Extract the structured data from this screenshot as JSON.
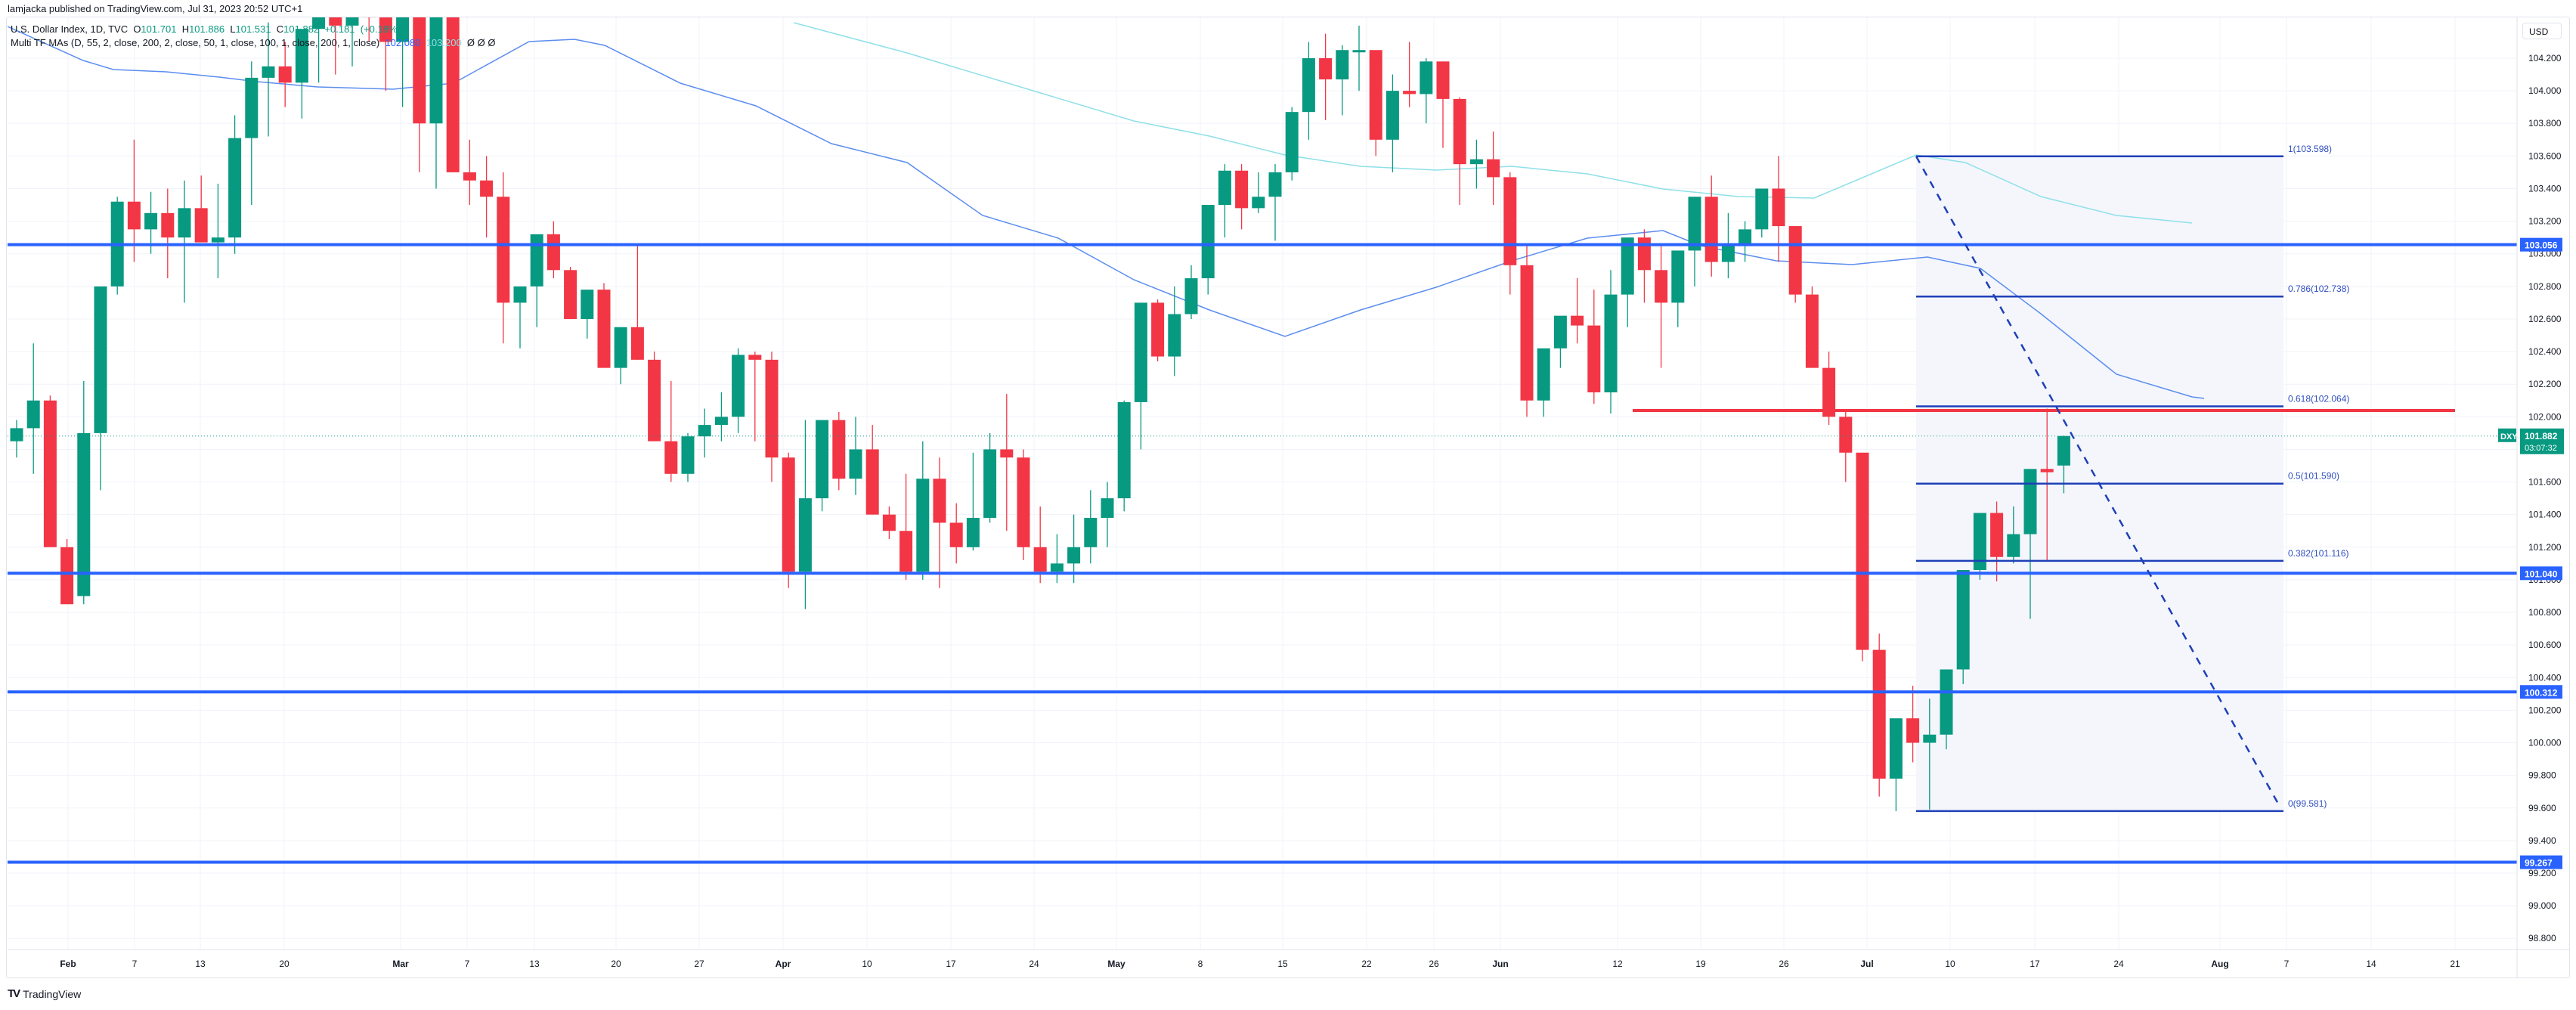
{
  "publisher_line": "lamjacka published on TradingView.com, Jul 31, 2023 20:52 UTC+1",
  "legend": {
    "symbol_info": "U.S. Dollar Index, 1D, TVC",
    "o_label": "O",
    "o": "101.701",
    "h_label": "H",
    "h": "101.886",
    "l_label": "L",
    "l": "101.531",
    "c_label": "C",
    "c": "101.882",
    "change": "+0.181",
    "change_pct": "(+0.18%)",
    "indicator": "Multi TF MAs (D, 55, 2, close, 200, 2, close, 50, 1, close, 100, 1, close, 200, 1, close)",
    "ma1_value": "102.080",
    "ma2_value": "103.200",
    "extra_values": "Ø Ø Ø"
  },
  "price_axis": {
    "currency": "USD",
    "ticks": [
      "104.200",
      "104.000",
      "103.800",
      "103.600",
      "103.400",
      "103.200",
      "103.000",
      "102.800",
      "102.600",
      "102.400",
      "102.200",
      "102.000",
      "101.800",
      "101.600",
      "101.400",
      "101.200",
      "101.000",
      "100.800",
      "100.600",
      "100.400",
      "100.200",
      "100.000",
      "99.800",
      "99.600",
      "99.400",
      "99.200",
      "99.000",
      "98.800"
    ],
    "current_price": {
      "symbol": "DXY",
      "price": "101.882",
      "countdown": "03:07:32"
    },
    "level_tags": [
      "103.056",
      "101.040",
      "100.312",
      "99.267"
    ]
  },
  "time_axis": {
    "labels": [
      {
        "t": "Feb",
        "x": 90,
        "bold": true
      },
      {
        "t": "7",
        "x": 178
      },
      {
        "t": "13",
        "x": 265
      },
      {
        "t": "20",
        "x": 376
      },
      {
        "t": "Mar",
        "x": 530,
        "bold": true
      },
      {
        "t": "7",
        "x": 618
      },
      {
        "t": "13",
        "x": 707
      },
      {
        "t": "20",
        "x": 815
      },
      {
        "t": "27",
        "x": 925
      },
      {
        "t": "Apr",
        "x": 1036,
        "bold": true
      },
      {
        "t": "10",
        "x": 1147
      },
      {
        "t": "17",
        "x": 1258
      },
      {
        "t": "24",
        "x": 1368
      },
      {
        "t": "May",
        "x": 1477,
        "bold": true
      },
      {
        "t": "8",
        "x": 1588
      },
      {
        "t": "15",
        "x": 1697
      },
      {
        "t": "22",
        "x": 1808
      },
      {
        "t": "26",
        "x": 1897
      },
      {
        "t": "Jun",
        "x": 1985,
        "bold": true
      },
      {
        "t": "12",
        "x": 2140
      },
      {
        "t": "19",
        "x": 2250
      },
      {
        "t": "26",
        "x": 2360
      },
      {
        "t": "Jul",
        "x": 2470,
        "bold": true
      },
      {
        "t": "10",
        "x": 2580
      },
      {
        "t": "17",
        "x": 2692
      },
      {
        "t": "24",
        "x": 2803
      },
      {
        "t": "Aug",
        "x": 2937,
        "bold": true
      },
      {
        "t": "7",
        "x": 3025
      },
      {
        "t": "14",
        "x": 3137
      },
      {
        "t": "21",
        "x": 3248
      }
    ]
  },
  "fib_retracement": {
    "levels": [
      {
        "ratio": "1",
        "price": 103.598,
        "label": "1(103.598)"
      },
      {
        "ratio": "0.786",
        "price": 102.738,
        "label": "0.786(102.738)"
      },
      {
        "ratio": "0.618",
        "price": 102.064,
        "label": "0.618(102.064)"
      },
      {
        "ratio": "0.5",
        "price": 101.59,
        "label": "0.5(101.590)"
      },
      {
        "ratio": "0.382",
        "price": 101.116,
        "label": "0.382(101.116)"
      },
      {
        "ratio": "0",
        "price": 99.581,
        "label": "0(99.581)"
      }
    ]
  },
  "footer": {
    "brand": "TradingView",
    "logo": "TV"
  },
  "colors": {
    "up": "#089981",
    "down": "#f23645",
    "level": "#2962ff",
    "fib": "#1e40b8",
    "ma55": "#5b8def",
    "ma200": "#8ee0e8",
    "red_level": "#f23645"
  },
  "chart_data": {
    "type": "candlestick",
    "title": "U.S. Dollar Index, 1D, TVC",
    "ylabel": "USD",
    "ylim": [
      98.7,
      104.45
    ],
    "horizontal_levels": [
      103.056,
      101.04,
      100.312,
      99.267
    ],
    "resistance_line": 102.1,
    "candles_first_date": "2023-01-27",
    "candles_last_date": "2023-07-31",
    "ohlc": [
      [
        101.85,
        101.98,
        101.75,
        101.93
      ],
      [
        101.93,
        102.45,
        101.65,
        102.1
      ],
      [
        102.1,
        102.13,
        101.3,
        101.2
      ],
      [
        101.2,
        101.25,
        100.9,
        100.85
      ],
      [
        100.9,
        102.22,
        100.85,
        101.9
      ],
      [
        101.9,
        102.8,
        101.55,
        102.8
      ],
      [
        102.8,
        103.35,
        102.75,
        103.32
      ],
      [
        103.32,
        103.7,
        102.95,
        103.15
      ],
      [
        103.15,
        103.38,
        103.0,
        103.25
      ],
      [
        103.25,
        103.4,
        102.85,
        103.1
      ],
      [
        103.1,
        103.45,
        102.7,
        103.28
      ],
      [
        103.28,
        103.48,
        103.25,
        103.07
      ],
      [
        103.07,
        103.43,
        102.85,
        103.1
      ],
      [
        103.1,
        103.85,
        103.0,
        103.71
      ],
      [
        103.71,
        104.18,
        103.3,
        104.08
      ],
      [
        104.08,
        104.42,
        103.72,
        104.15
      ],
      [
        104.15,
        104.3,
        103.9,
        104.05
      ],
      [
        104.05,
        104.2,
        103.83,
        104.38
      ],
      [
        104.38,
        104.45,
        104.05,
        104.5
      ],
      [
        104.5,
        104.55,
        104.1,
        104.4
      ],
      [
        104.4,
        104.55,
        104.15,
        104.55
      ],
      [
        104.55,
        104.65,
        104.3,
        104.45
      ],
      [
        104.45,
        104.6,
        104.0,
        104.3
      ],
      [
        104.3,
        104.55,
        103.9,
        104.5
      ],
      [
        104.5,
        104.6,
        103.5,
        103.8
      ],
      [
        103.8,
        104.6,
        103.4,
        104.58
      ],
      [
        104.58,
        104.6,
        103.6,
        103.5
      ],
      [
        103.5,
        103.7,
        103.3,
        103.45
      ],
      [
        103.45,
        103.6,
        103.1,
        103.35
      ],
      [
        103.35,
        103.5,
        102.45,
        102.7
      ],
      [
        102.7,
        102.78,
        102.42,
        102.8
      ],
      [
        102.8,
        103.0,
        102.55,
        103.12
      ],
      [
        103.12,
        103.2,
        102.85,
        102.9
      ],
      [
        102.9,
        102.92,
        102.7,
        102.6
      ],
      [
        102.6,
        102.7,
        102.48,
        102.78
      ],
      [
        102.78,
        102.82,
        102.45,
        102.3
      ],
      [
        102.3,
        102.5,
        102.2,
        102.55
      ],
      [
        102.55,
        103.05,
        102.35,
        102.35
      ],
      [
        102.35,
        102.4,
        101.95,
        101.85
      ],
      [
        101.85,
        102.22,
        101.6,
        101.65
      ],
      [
        101.65,
        101.9,
        101.6,
        101.88
      ],
      [
        101.88,
        102.05,
        101.75,
        101.95
      ],
      [
        101.95,
        102.15,
        101.85,
        102.0
      ],
      [
        102.0,
        102.42,
        101.9,
        102.38
      ],
      [
        102.38,
        102.4,
        101.85,
        102.35
      ],
      [
        102.35,
        102.4,
        101.6,
        101.75
      ],
      [
        101.75,
        101.78,
        100.95,
        101.05
      ],
      [
        101.05,
        101.98,
        100.82,
        101.5
      ],
      [
        101.5,
        101.97,
        101.42,
        101.98
      ],
      [
        101.98,
        102.03,
        101.55,
        101.62
      ],
      [
        101.62,
        102.0,
        101.52,
        101.8
      ],
      [
        101.8,
        101.95,
        101.52,
        101.4
      ],
      [
        101.4,
        101.45,
        101.25,
        101.3
      ],
      [
        101.3,
        101.65,
        101.0,
        101.05
      ],
      [
        101.05,
        101.85,
        101.0,
        101.62
      ],
      [
        101.62,
        101.75,
        100.95,
        101.35
      ],
      [
        101.35,
        101.47,
        101.1,
        101.2
      ],
      [
        101.2,
        101.78,
        101.18,
        101.38
      ],
      [
        101.38,
        101.9,
        101.35,
        101.8
      ],
      [
        101.8,
        102.14,
        101.3,
        101.75
      ],
      [
        101.75,
        101.8,
        101.12,
        101.2
      ],
      [
        101.2,
        101.45,
        100.98,
        101.05
      ],
      [
        101.05,
        101.28,
        100.98,
        101.1
      ],
      [
        101.1,
        101.4,
        100.98,
        101.2
      ],
      [
        101.2,
        101.55,
        101.1,
        101.38
      ],
      [
        101.38,
        101.6,
        101.2,
        101.5
      ],
      [
        101.5,
        102.1,
        101.42,
        102.09
      ],
      [
        102.09,
        102.7,
        101.8,
        102.7
      ],
      [
        102.7,
        102.72,
        102.34,
        102.37
      ],
      [
        102.37,
        102.8,
        102.25,
        102.63
      ],
      [
        102.63,
        102.93,
        102.6,
        102.85
      ],
      [
        102.85,
        103.18,
        102.75,
        103.3
      ],
      [
        103.3,
        103.55,
        103.1,
        103.51
      ],
      [
        103.51,
        103.55,
        103.15,
        103.28
      ],
      [
        103.28,
        103.5,
        103.25,
        103.35
      ],
      [
        103.35,
        103.55,
        103.08,
        103.5
      ],
      [
        103.5,
        103.9,
        103.45,
        103.87
      ],
      [
        103.87,
        104.3,
        103.7,
        104.2
      ],
      [
        104.2,
        104.35,
        103.82,
        104.07
      ],
      [
        104.07,
        104.28,
        103.85,
        104.25
      ],
      [
        104.25,
        104.4,
        104.0,
        104.25
      ],
      [
        104.25,
        104.1,
        103.6,
        103.7
      ],
      [
        103.7,
        104.1,
        103.5,
        104.0
      ],
      [
        104.0,
        104.3,
        103.9,
        103.98
      ],
      [
        103.98,
        104.2,
        103.8,
        104.18
      ],
      [
        104.18,
        104.18,
        103.65,
        103.95
      ],
      [
        103.95,
        103.96,
        103.3,
        103.55
      ],
      [
        103.55,
        103.7,
        103.4,
        103.58
      ],
      [
        103.58,
        103.75,
        103.3,
        103.47
      ],
      [
        103.47,
        103.5,
        102.75,
        102.93
      ],
      [
        102.93,
        103.05,
        102.0,
        102.1
      ],
      [
        102.1,
        102.4,
        102.0,
        102.42
      ],
      [
        102.42,
        102.6,
        102.3,
        102.62
      ],
      [
        102.62,
        102.85,
        102.45,
        102.56
      ],
      [
        102.56,
        102.78,
        102.08,
        102.15
      ],
      [
        102.15,
        102.9,
        102.02,
        102.75
      ],
      [
        102.75,
        103.07,
        102.55,
        103.1
      ],
      [
        103.1,
        103.15,
        102.7,
        102.9
      ],
      [
        102.9,
        103.05,
        102.3,
        102.7
      ],
      [
        102.7,
        102.95,
        102.55,
        103.02
      ],
      [
        103.02,
        103.35,
        102.8,
        103.35
      ],
      [
        103.35,
        103.48,
        102.86,
        102.95
      ],
      [
        102.95,
        103.25,
        102.85,
        103.05
      ],
      [
        103.05,
        103.2,
        102.95,
        103.15
      ],
      [
        103.15,
        103.37,
        103.1,
        103.4
      ],
      [
        103.4,
        103.6,
        102.95,
        103.17
      ],
      [
        103.17,
        103.1,
        102.7,
        102.75
      ],
      [
        102.75,
        102.8,
        102.4,
        102.3
      ],
      [
        102.3,
        102.4,
        101.95,
        102.0
      ],
      [
        102.0,
        102.04,
        101.6,
        101.78
      ],
      [
        101.78,
        101.76,
        100.5,
        100.57
      ],
      [
        100.57,
        100.67,
        99.67,
        99.78
      ],
      [
        99.78,
        100.08,
        99.58,
        100.15
      ],
      [
        100.15,
        100.35,
        99.88,
        100.0
      ],
      [
        100.0,
        100.27,
        99.59,
        100.05
      ],
      [
        100.05,
        100.43,
        99.96,
        100.45
      ],
      [
        100.45,
        101.0,
        100.36,
        101.06
      ],
      [
        101.06,
        101.35,
        101.0,
        101.41
      ],
      [
        101.41,
        101.48,
        100.99,
        101.14
      ],
      [
        101.14,
        101.45,
        101.1,
        101.28
      ],
      [
        101.28,
        101.6,
        100.76,
        101.68
      ],
      [
        101.68,
        102.05,
        101.12,
        101.66
      ],
      [
        101.701,
        101.886,
        101.531,
        101.882
      ]
    ]
  }
}
